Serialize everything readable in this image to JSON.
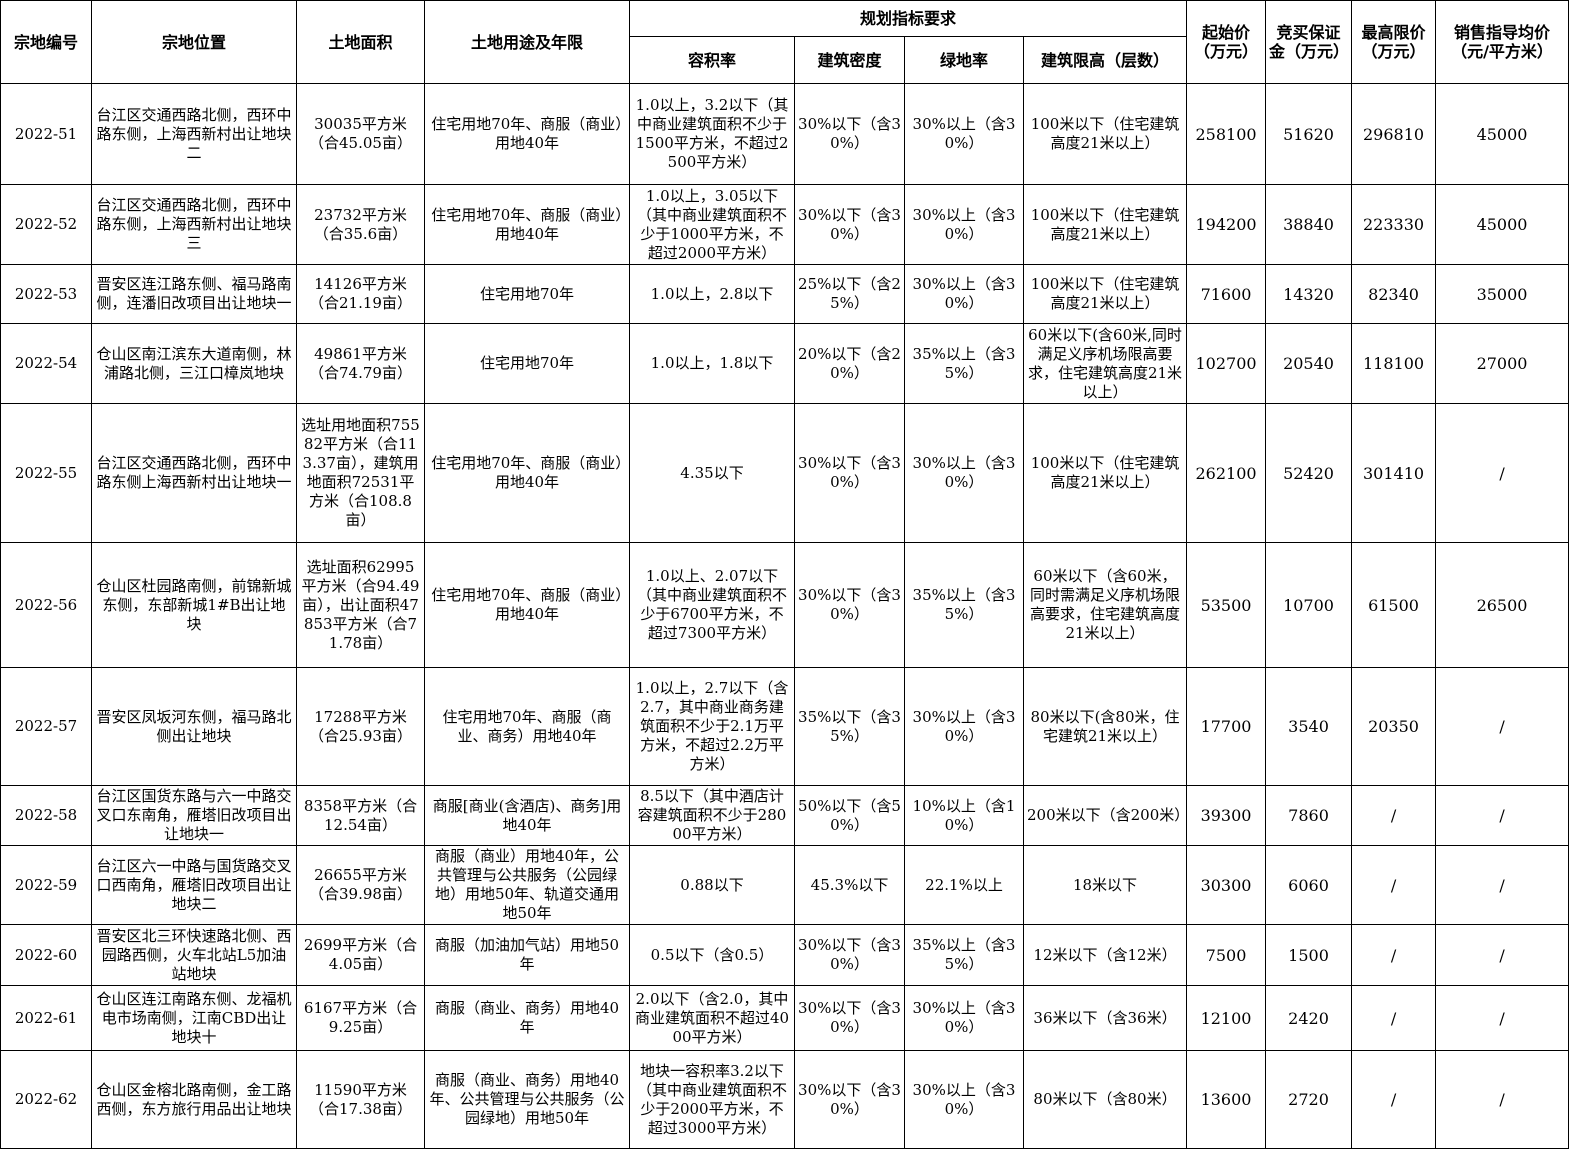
{
  "headers": {
    "id": "宗地编号",
    "location": "宗地位置",
    "area": "土地面积",
    "usage": "土地用途及年限",
    "planning": "规划指标要求",
    "far": "容积率",
    "density": "建筑密度",
    "green": "绿地率",
    "height": "建筑限高（层数）",
    "start_price": "起始价（万元）",
    "deposit": "竞买保证金（万元）",
    "max_price": "最高限价（万元）",
    "sale_price": "销售指导均价（元/平方米）"
  },
  "rows": [
    {
      "id": "2022-51",
      "location": "台江区交通西路北侧，西环中路东侧，上海西新村出让地块二",
      "area": "30035平方米（合45.05亩）",
      "usage": "住宅用地70年、商服（商业）用地40年",
      "far": "1.0以上，3.2以下（其中商业建筑面积不少于1500平方米，不超过2500平方米）",
      "density": "30%以下（含30%）",
      "green": "30%以上（含30%）",
      "height": "100米以下（住宅建筑高度21米以上）",
      "start_price": "258100",
      "deposit": "51620",
      "max_price": "296810",
      "sale_price": "45000"
    },
    {
      "id": "2022-52",
      "location": "台江区交通西路北侧，西环中路东侧，上海西新村出让地块三",
      "area": "23732平方米（合35.6亩）",
      "usage": "住宅用地70年、商服（商业）用地40年",
      "far": "1.0以上，3.05以下（其中商业建筑面积不少于1000平方米，不超过2000平方米）",
      "density": "30%以下（含30%）",
      "green": "30%以上（含30%）",
      "height": "100米以下（住宅建筑高度21米以上）",
      "start_price": "194200",
      "deposit": "38840",
      "max_price": "223330",
      "sale_price": "45000"
    },
    {
      "id": "2022-53",
      "location": "晋安区连江路东侧、福马路南侧，连潘旧改项目出让地块一",
      "area": "14126平方米（合21.19亩）",
      "usage": "住宅用地70年",
      "far": "1.0以上，2.8以下",
      "density": "25%以下（含25%）",
      "green": "30%以上（含30%）",
      "height": "100米以下（住宅建筑高度21米以上）",
      "start_price": "71600",
      "deposit": "14320",
      "max_price": "82340",
      "sale_price": "35000"
    },
    {
      "id": "2022-54",
      "location": "仓山区南江滨东大道南侧，林浦路北侧，三江口樟岚地块",
      "area": "49861平方米（合74.79亩）",
      "usage": "住宅用地70年",
      "far": "1.0以上，1.8以下",
      "density": "20%以下（含20%）",
      "green": "35%以上（含35%）",
      "height": "60米以下(含60米,同时满足义序机场限高要求，住宅建筑高度21米以上）",
      "start_price": "102700",
      "deposit": "20540",
      "max_price": "118100",
      "sale_price": "27000"
    },
    {
      "id": "2022-55",
      "location": "台江区交通西路北侧，西环中路东侧上海西新村出让地块一",
      "area": "选址用地面积75582平方米（合113.37亩），建筑用地面积72531平方米（合108.8亩）",
      "usage": "住宅用地70年、商服（商业）用地40年",
      "far": "4.35以下",
      "density": "30%以下（含30%）",
      "green": "30%以上（含30%）",
      "height": "100米以下（住宅建筑高度21米以上）",
      "start_price": "262100",
      "deposit": "52420",
      "max_price": "301410",
      "sale_price": "/"
    },
    {
      "id": "2022-56",
      "location": "仓山区杜园路南侧，前锦新城东侧，东部新城1#B出让地块",
      "area": "选址面积62995平方米（合94.49亩），出让面积47853平方米（合71.78亩）",
      "usage": "住宅用地70年、商服（商业）用地40年",
      "far": "1.0以上、2.07以下（其中商业建筑面积不少于6700平方米，不超过7300平方米）",
      "density": "30%以下（含30%）",
      "green": "35%以上（含35%）",
      "height": "60米以下（含60米，同时需满足义序机场限高要求，住宅建筑高度21米以上）",
      "start_price": "53500",
      "deposit": "10700",
      "max_price": "61500",
      "sale_price": "26500"
    },
    {
      "id": "2022-57",
      "location": "晋安区凤坂河东侧，福马路北侧出让地块",
      "area": "17288平方米（合25.93亩）",
      "usage": "住宅用地70年、商服（商业、商务）用地40年",
      "far": "1.0以上，2.7以下（含2.7，其中商业商务建筑面积不少于2.1万平方米，不超过2.2万平方米）",
      "density": "35%以下（含35%）",
      "green": "30%以上（含30%）",
      "height": "80米以下(含80米，住宅建筑21米以上）",
      "start_price": "17700",
      "deposit": "3540",
      "max_price": "20350",
      "sale_price": "/"
    },
    {
      "id": "2022-58",
      "location": "台江区国货东路与六一中路交叉口东南角，雁塔旧改项目出让地块一",
      "area": "8358平方米（合12.54亩）",
      "usage": "商服[商业(含酒店)、商务]用地40年",
      "far": "8.5以下（其中酒店计容建筑面积不少于28000平方米）",
      "density": "50%以下（含50%）",
      "green": "10%以上（含10%）",
      "height": "200米以下（含200米）",
      "start_price": "39300",
      "deposit": "7860",
      "max_price": "/",
      "sale_price": "/"
    },
    {
      "id": "2022-59",
      "location": "台江区六一中路与国货路交叉口西南角，雁塔旧改项目出让地块二",
      "area": "26655平方米（合39.98亩）",
      "usage": "商服（商业）用地40年，公共管理与公共服务（公园绿地）用地50年、轨道交通用地50年",
      "far": "0.88以下",
      "density": "45.3%以下",
      "green": "22.1%以上",
      "height": "18米以下",
      "start_price": "30300",
      "deposit": "6060",
      "max_price": "/",
      "sale_price": "/"
    },
    {
      "id": "2022-60",
      "location": "晋安区北三环快速路北侧、西园路西侧，火车北站L5加油站地块",
      "area": "2699平方米（合4.05亩）",
      "usage": "商服（加油加气站）用地50年",
      "far": "0.5以下（含0.5）",
      "density": "30%以下（含30%）",
      "green": "35%以上（含35%）",
      "height": "12米以下（含12米）",
      "start_price": "7500",
      "deposit": "1500",
      "max_price": "/",
      "sale_price": "/"
    },
    {
      "id": "2022-61",
      "location": "仓山区连江南路东侧、龙福机电市场南侧，江南CBD出让地块十",
      "area": "6167平方米（合9.25亩）",
      "usage": "商服（商业、商务）用地40年",
      "far": "2.0以下（含2.0，其中商业建筑面积不超过4000平方米）",
      "density": "30%以下（含30%）",
      "green": "30%以上（含30%）",
      "height": "36米以下（含36米）",
      "start_price": "12100",
      "deposit": "2420",
      "max_price": "/",
      "sale_price": "/"
    },
    {
      "id": "2022-62",
      "location": "仓山区金榕北路南侧，金工路西侧，东方旅行用品出让地块",
      "area": "11590平方米（合17.38亩）",
      "usage": "商服（商业、商务）用地40年、公共管理与公共服务（公园绿地）用地50年",
      "far": "地块一容积率3.2以下（其中商业建筑面积不少于2000平方米，不超过3000平方米）",
      "density": "30%以下（含30%）",
      "green": "30%以上（含30%）",
      "height": "80米以下（含80米）",
      "start_price": "13600",
      "deposit": "2720",
      "max_price": "/",
      "sale_price": "/"
    }
  ]
}
